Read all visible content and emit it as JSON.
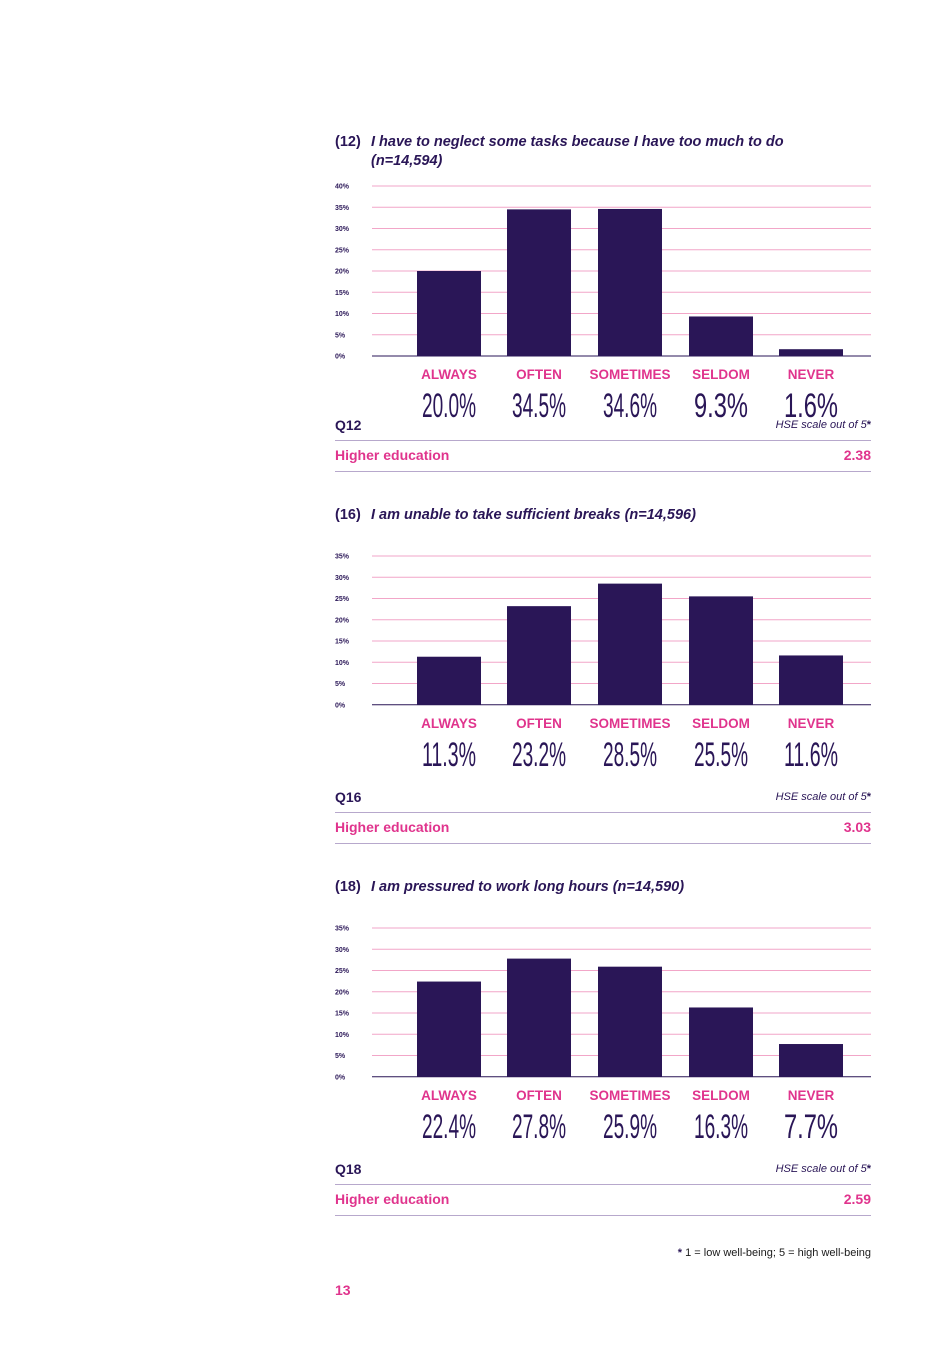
{
  "chart_data": [
    {
      "type": "bar",
      "question_number": "(12)",
      "title_line1": "I have to neglect some tasks because I have too much to do",
      "title_line2": "(n=14,594)",
      "categories": [
        "ALWAYS",
        "OFTEN",
        "SOMETIMES",
        "SELDOM",
        "NEVER"
      ],
      "values": [
        20.0,
        34.5,
        34.6,
        9.3,
        1.6
      ],
      "value_labels": [
        "20.0%",
        "34.5%",
        "34.6%",
        "9.3%",
        "1.6%"
      ],
      "ylim": [
        0,
        40
      ],
      "yticks": [
        "0%",
        "5%",
        "10%",
        "15%",
        "20%",
        "25%",
        "30%",
        "35%",
        "40%"
      ],
      "grid": true,
      "q_label": "Q12",
      "hse_label": "HSE scale out of 5",
      "sector": "Higher education",
      "score": "2.38"
    },
    {
      "type": "bar",
      "question_number": "(16)",
      "title_line1": "I am unable to take sufficient breaks (n=14,596)",
      "title_line2": "",
      "categories": [
        "ALWAYS",
        "OFTEN",
        "SOMETIMES",
        "SELDOM",
        "NEVER"
      ],
      "values": [
        11.3,
        23.2,
        28.5,
        25.5,
        11.6
      ],
      "value_labels": [
        "11.3%",
        "23.2%",
        "28.5%",
        "25.5%",
        "11.6%"
      ],
      "ylim": [
        0,
        35
      ],
      "yticks": [
        "0%",
        "5%",
        "10%",
        "15%",
        "20%",
        "25%",
        "30%",
        "35%"
      ],
      "grid": true,
      "q_label": "Q16",
      "hse_label": "HSE scale out of 5",
      "sector": "Higher education",
      "score": "3.03"
    },
    {
      "type": "bar",
      "question_number": "(18)",
      "title_line1": "I am pressured to work long hours (n=14,590)",
      "title_line2": "",
      "categories": [
        "ALWAYS",
        "OFTEN",
        "SOMETIMES",
        "SELDOM",
        "NEVER"
      ],
      "values": [
        22.4,
        27.8,
        25.9,
        16.3,
        7.7
      ],
      "value_labels": [
        "22.4%",
        "27.8%",
        "25.9%",
        "16.3%",
        "7.7%"
      ],
      "ylim": [
        0,
        35
      ],
      "yticks": [
        "0%",
        "5%",
        "10%",
        "15%",
        "20%",
        "25%",
        "30%",
        "35%"
      ],
      "grid": true,
      "q_label": "Q18",
      "hse_label": "HSE scale out of 5",
      "sector": "Higher education",
      "score": "2.59"
    }
  ],
  "footnote": {
    "star": "*",
    "text": "1 = low well-being; 5 = high well-being"
  },
  "page_number": "13",
  "colors": {
    "bar": "#2a1657",
    "accent": "#e0348d",
    "gridline": "#f2a6c8",
    "rule": "#b7a8cc"
  }
}
